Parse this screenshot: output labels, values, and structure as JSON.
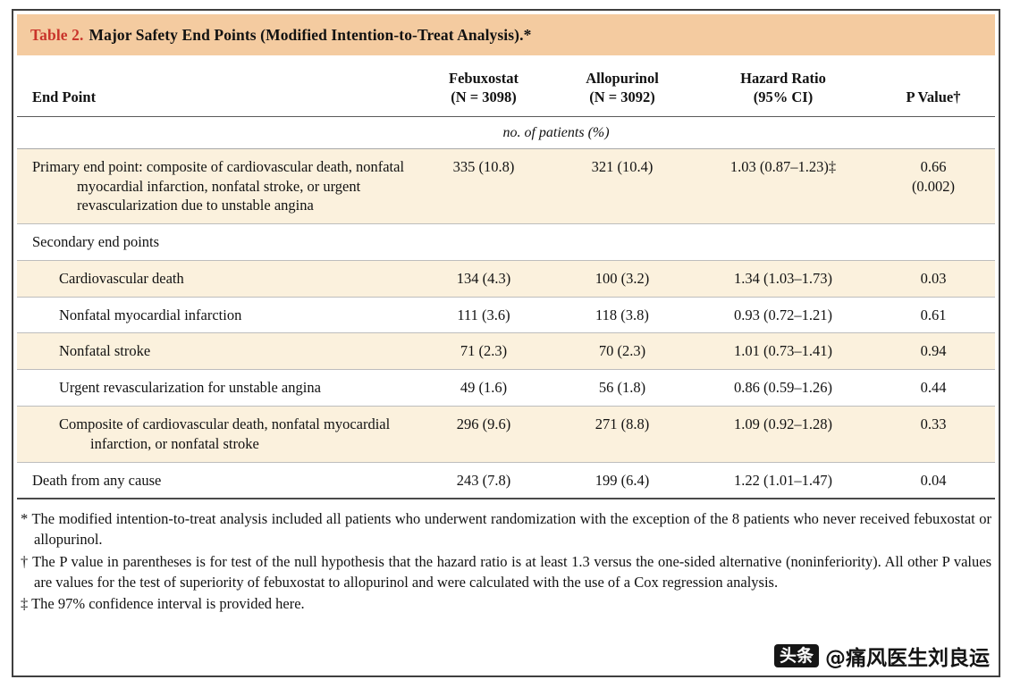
{
  "table": {
    "title_label": "Table 2.",
    "title_text": "Major Safety End Points (Modified Intention-to-Treat Analysis).*",
    "columns": {
      "endpoint": "End Point",
      "febuxostat": "Febuxostat\n(N = 3098)",
      "allopurinol": "Allopurinol\n(N = 3092)",
      "hazard_ratio": "Hazard Ratio\n(95% CI)",
      "p_value": "P Value†"
    },
    "units_note": "no. of patients (%)",
    "rows": [
      {
        "label": "Primary end point: composite of cardiovascular death, nonfatal myocardial infarction, nonfatal stroke, or urgent revascularization due to unstable angina",
        "febuxostat": "335 (10.8)",
        "allopurinol": "321 (10.4)",
        "hazard_ratio": "1.03 (0.87–1.23)‡",
        "p_value": "0.66\n(0.002)"
      },
      {
        "label": "Secondary end points",
        "febuxostat": "",
        "allopurinol": "",
        "hazard_ratio": "",
        "p_value": ""
      },
      {
        "label": "Cardiovascular death",
        "febuxostat": "134 (4.3)",
        "allopurinol": "100 (3.2)",
        "hazard_ratio": "1.34 (1.03–1.73)",
        "p_value": "0.03"
      },
      {
        "label": "Nonfatal myocardial infarction",
        "febuxostat": "111 (3.6)",
        "allopurinol": "118 (3.8)",
        "hazard_ratio": "0.93 (0.72–1.21)",
        "p_value": "0.61"
      },
      {
        "label": "Nonfatal stroke",
        "febuxostat": "71 (2.3)",
        "allopurinol": "70 (2.3)",
        "hazard_ratio": "1.01 (0.73–1.41)",
        "p_value": "0.94"
      },
      {
        "label": "Urgent revascularization for unstable angina",
        "febuxostat": "49 (1.6)",
        "allopurinol": "56 (1.8)",
        "hazard_ratio": "0.86 (0.59–1.26)",
        "p_value": "0.44"
      },
      {
        "label": "Composite of cardiovascular death, nonfatal myocardial infarction, or nonfatal stroke",
        "febuxostat": "296 (9.6)",
        "allopurinol": "271 (8.8)",
        "hazard_ratio": "1.09 (0.92–1.28)",
        "p_value": "0.33"
      },
      {
        "label": "Death from any cause",
        "febuxostat": "243 (7.8)",
        "allopurinol": "199 (6.4)",
        "hazard_ratio": "1.22 (1.01–1.47)",
        "p_value": "0.04"
      }
    ]
  },
  "footnotes": [
    {
      "marker": "*",
      "text": "The modified intention-to-treat analysis included all patients who underwent randomization with the exception of the 8 patients who never received febuxostat or allopurinol."
    },
    {
      "marker": "†",
      "text": "The P value in parentheses is for test of the null hypothesis that the hazard ratio is at least 1.3 versus the one-sided alternative (noninferiority). All other P values are values for the test of superiority of febuxostat to allopurinol and were calculated with the use of a Cox regression analysis."
    },
    {
      "marker": "‡",
      "text": "The 97% confidence interval is provided here."
    }
  ],
  "watermark": {
    "badge": "头条",
    "handle": "@痛风医生刘良运"
  },
  "colors": {
    "title_red": "#c9342b",
    "header_tan": "#f4cba0",
    "row_shade": "#fbf1dd"
  }
}
